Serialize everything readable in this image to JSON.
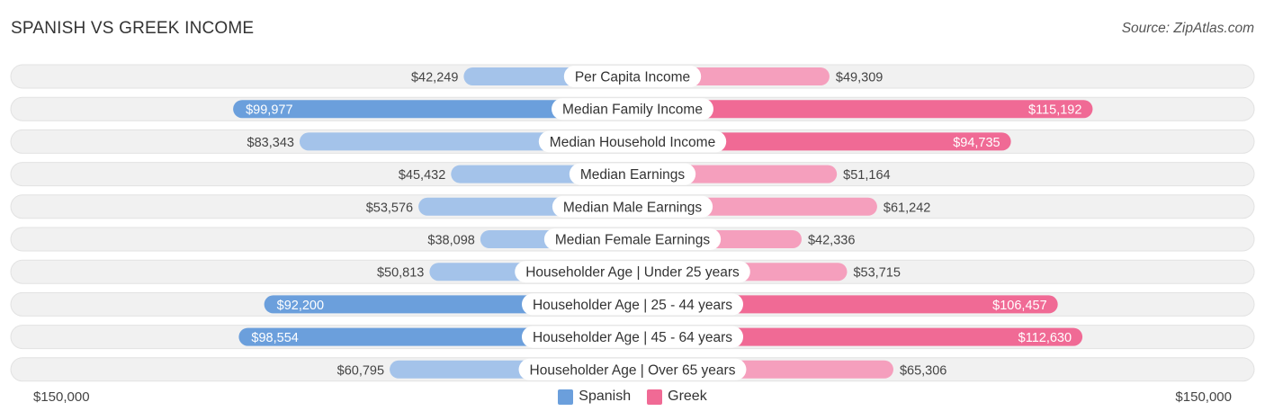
{
  "title": "SPANISH VS GREEK INCOME",
  "source": "Source: ZipAtlas.com",
  "colors": {
    "spanish_strong": "#6b9fdc",
    "spanish_light": "#a4c3ea",
    "greek_strong": "#f06a95",
    "greek_light": "#f59fbd",
    "track": "#f1f1f1",
    "track_border": "#e2e2e2"
  },
  "chart_data": {
    "type": "bar",
    "orientation": "horizontal-diverging",
    "title": "SPANISH VS GREEK INCOME",
    "categories": [
      "Per Capita Income",
      "Median Family Income",
      "Median Household Income",
      "Median Earnings",
      "Median Male Earnings",
      "Median Female Earnings",
      "Householder Age | Under 25 years",
      "Householder Age | 25 - 44 years",
      "Householder Age | 45 - 64 years",
      "Householder Age | Over 65 years"
    ],
    "series": [
      {
        "name": "Spanish",
        "values": [
          42249,
          99977,
          83343,
          45432,
          53576,
          38098,
          50813,
          92200,
          98554,
          60795
        ],
        "labels": [
          "$42,249",
          "$99,977",
          "$83,343",
          "$45,432",
          "$53,576",
          "$38,098",
          "$50,813",
          "$92,200",
          "$98,554",
          "$60,795"
        ]
      },
      {
        "name": "Greek",
        "values": [
          49309,
          115192,
          94735,
          51164,
          61242,
          42336,
          53715,
          106457,
          112630,
          65306
        ],
        "labels": [
          "$49,309",
          "$115,192",
          "$94,735",
          "$51,164",
          "$61,242",
          "$42,336",
          "$53,715",
          "$106,457",
          "$112,630",
          "$65,306"
        ]
      }
    ],
    "xlim": [
      -150000,
      150000
    ],
    "axis_labels": {
      "left": "$150,000",
      "right": "$150,000"
    },
    "legend": {
      "position": "bottom-center",
      "entries": [
        "Spanish",
        "Greek"
      ]
    }
  }
}
